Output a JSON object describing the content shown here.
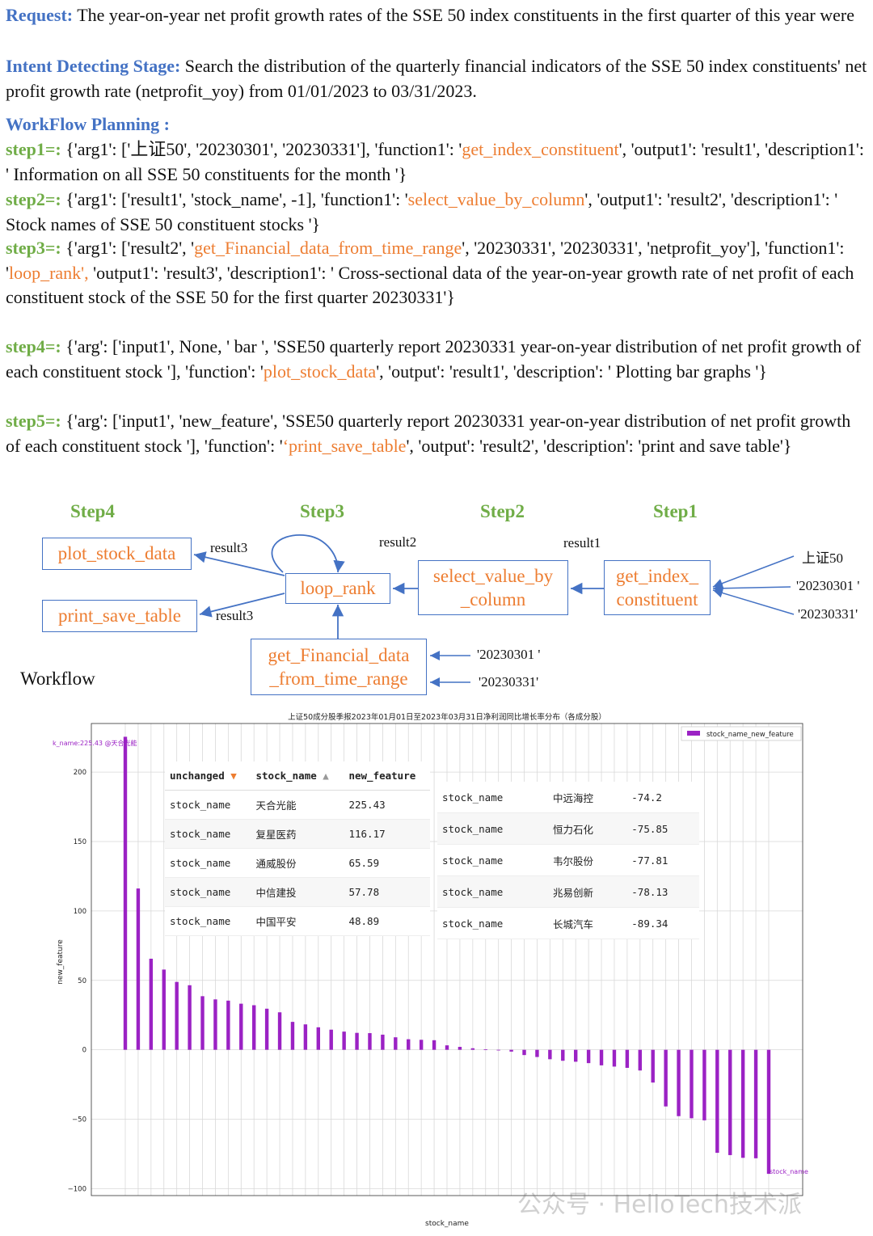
{
  "request": {
    "label": "Request:",
    "text": " The year-on-year net profit growth rates of the SSE 50 index constituents in the first quarter of this year were"
  },
  "intent": {
    "label": "Intent Detecting Stage:",
    "text": " Search the distribution of the quarterly financial indicators of the SSE 50 index constituents' net profit growth rate (netprofit_yoy) from 01/01/2023 to 03/31/2023."
  },
  "planning": {
    "label": "WorkFlow  Planning :",
    "steps": [
      {
        "label": "step1=:",
        "pre": " {'arg1': ['上证50', '20230301', '20230331'], 'function1': '",
        "fn": "get_index_constituent",
        "post": "', 'output1': 'result1', 'description1': ' Information on all SSE 50 constituents for the month '}"
      },
      {
        "label": "step2=:",
        "pre": " {'arg1': ['result1', 'stock_name', -1], 'function1': '",
        "fn": "select_value_by_column",
        "post": "', 'output1': 'result2', 'description1': ' Stock names of SSE 50 constituent stocks '}"
      },
      {
        "label": "step3=:",
        "pre": " {'arg1': ['result2', '",
        "fn": "get_Financial_data_from_time_range",
        "mid": "', '20230331', '20230331', 'netprofit_yoy'], 'function1': '",
        "fn2": "loop_rank',",
        "post": " 'output1': 'result3', 'description1': ' Cross-sectional data of the year-on-year growth rate of net profit of each constituent stock of the SSE 50 for the first quarter 20230331'}"
      },
      {
        "label": "step4=:",
        "pre": " {'arg': ['input1', None, ' bar ', 'SSE50 quarterly report 20230331 year-on-year distribution of net profit growth of each constituent stock '], 'function': '",
        "fn": "plot_stock_data",
        "post": "', 'output': 'result1', 'description': ' Plotting bar graphs '}"
      },
      {
        "label": "step5=:",
        "pre": " {'arg': ['input1', 'new_feature', 'SSE50 quarterly report 20230331 year-on-year distribution of net profit growth of each constituent stock '], 'function': '",
        "fn": "‘print_save_table",
        "post": "', 'output': 'result2', 'description': 'print and save table'}"
      }
    ]
  },
  "workflow": {
    "title": "Workflow",
    "steps": [
      "Step4",
      "Step3",
      "Step2",
      "Step1"
    ],
    "boxes": {
      "plot": "plot_stock_data",
      "print": "print_save_table",
      "loop": "loop_rank",
      "select1": "select_value_by",
      "select2": "_column",
      "getidx1": "get_index_",
      "getidx2": "constituent",
      "getfin1": "get_Financial_data",
      "getfin2": "_from_time_range"
    },
    "notes": {
      "result3a": "result3",
      "result3b": "result3",
      "result2": "result2",
      "result1": "result1",
      "in1": "上证50",
      "in2": "'20230301 '",
      "in3": "'20230331'",
      "fin_in1": "'20230301 '",
      "fin_in2": "'20230331'"
    }
  },
  "chart_data": {
    "type": "bar",
    "title": "上证50成分股季报2023年01月01日至2023年03月31日净利润同比增长率分布（各成分股）",
    "xlabel": "stock_name",
    "ylabel": "new_feature",
    "legend": "stock_name_new_feature",
    "legend_position": "top-right",
    "grid": true,
    "ylim": [
      -105,
      235
    ],
    "yticks": [
      -100,
      -50,
      0,
      50,
      100,
      150,
      200
    ],
    "annotation_top": "k_name:225.43 @天合光能",
    "annotation_bottom": "stock_name",
    "color": "#9b22c4",
    "values": [
      225.43,
      116.17,
      65.59,
      57.78,
      48.89,
      46.5,
      38.6,
      36.3,
      35.4,
      33.2,
      32.1,
      29.6,
      27.0,
      20.1,
      18.3,
      16.2,
      14.5,
      13.1,
      12.2,
      12.0,
      10.9,
      9.0,
      7.6,
      7.2,
      6.9,
      3.2,
      2.1,
      1.1,
      0.3,
      0.0,
      -1.3,
      -3.8,
      -5.2,
      -6.8,
      -7.9,
      -8.6,
      -9.6,
      -11.2,
      -12.1,
      -13.0,
      -14.9,
      -23.6,
      -40.8,
      -47.8,
      -49.3,
      -50.8,
      -74.2,
      -75.85,
      -77.81,
      -78.13,
      -89.34
    ]
  },
  "table_top": {
    "headers": [
      "unchanged",
      "stock_name",
      "new_feature"
    ],
    "rows": [
      [
        "stock_name",
        "天合光能",
        "225.43"
      ],
      [
        "stock_name",
        "复星医药",
        "116.17"
      ],
      [
        "stock_name",
        "通威股份",
        "65.59"
      ],
      [
        "stock_name",
        "中信建投",
        "57.78"
      ],
      [
        "stock_name",
        "中国平安",
        "48.89"
      ]
    ]
  },
  "table_bottom": {
    "rows": [
      [
        "stock_name",
        "中远海控",
        "-74.2"
      ],
      [
        "stock_name",
        "恒力石化",
        "-75.85"
      ],
      [
        "stock_name",
        "韦尔股份",
        "-77.81"
      ],
      [
        "stock_name",
        "兆易创新",
        "-78.13"
      ],
      [
        "stock_name",
        "长城汽车",
        "-89.34"
      ]
    ]
  },
  "watermark": "公众号 · HelloTech技术派"
}
